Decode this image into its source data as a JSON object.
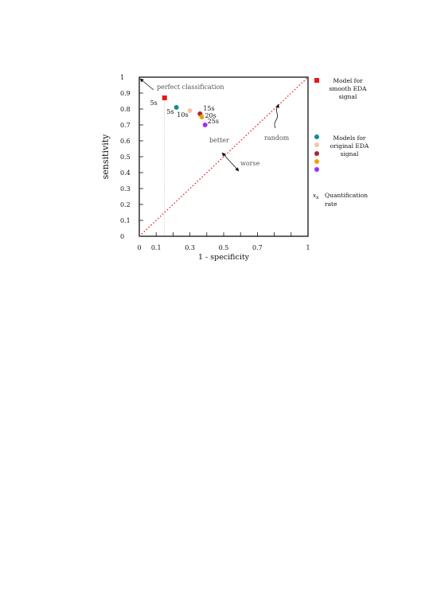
{
  "chart_data": {
    "type": "scatter",
    "title": "",
    "xlabel": "1 - specificity",
    "ylabel": "sensitivity",
    "xlim": [
      0,
      1
    ],
    "ylim": [
      0,
      1
    ],
    "x_ticks": [
      "0",
      "0.1",
      "0.3",
      "0.5",
      "0.7",
      "1"
    ],
    "x_tick_values": [
      0,
      0.1,
      0.3,
      0.5,
      0.7,
      1
    ],
    "x_minor_ticks": [
      0.2,
      0.4,
      0.6,
      0.8,
      0.9
    ],
    "y_ticks": [
      "0",
      "0.1",
      "0.2",
      "0.3",
      "0.4",
      "0.5",
      "0.6",
      "0.7",
      "0.8",
      "0.9",
      "1"
    ],
    "y_tick_values": [
      0,
      0.1,
      0.2,
      0.3,
      0.4,
      0.5,
      0.6,
      0.7,
      0.8,
      0.9,
      1
    ],
    "grid": false,
    "reference_line": {
      "from": [
        0,
        0
      ],
      "to": [
        1,
        1
      ],
      "color": "#e02020",
      "label": "random"
    },
    "annotations": {
      "perfect": "perfect classification",
      "better": "better",
      "worse": "worse",
      "random": "random"
    },
    "series": [
      {
        "name": "Model for smooth EDA signal",
        "marker": "square",
        "points": [
          {
            "x": 0.15,
            "y": 0.87,
            "label": "5s",
            "color": "#e31a1c"
          }
        ]
      },
      {
        "name": "Models for original EDA signal",
        "marker": "circle",
        "points": [
          {
            "x": 0.22,
            "y": 0.81,
            "label": "5s",
            "color": "#138c8c"
          },
          {
            "x": 0.3,
            "y": 0.79,
            "label": "10s",
            "color": "#f5c5a3"
          },
          {
            "x": 0.36,
            "y": 0.77,
            "label": "15s",
            "color": "#a52a2a"
          },
          {
            "x": 0.37,
            "y": 0.75,
            "label": "20s",
            "color": "#f39c12"
          },
          {
            "x": 0.39,
            "y": 0.7,
            "label": "25s",
            "color": "#9b30ff"
          }
        ]
      }
    ],
    "legend": {
      "placement": "right",
      "smooth_label": "Model for smooth EDA signal",
      "original_label": "Models for original EDA signal",
      "rate_symbol": "x",
      "rate_subscript": "s",
      "rate_label": "Quantification rate"
    }
  }
}
